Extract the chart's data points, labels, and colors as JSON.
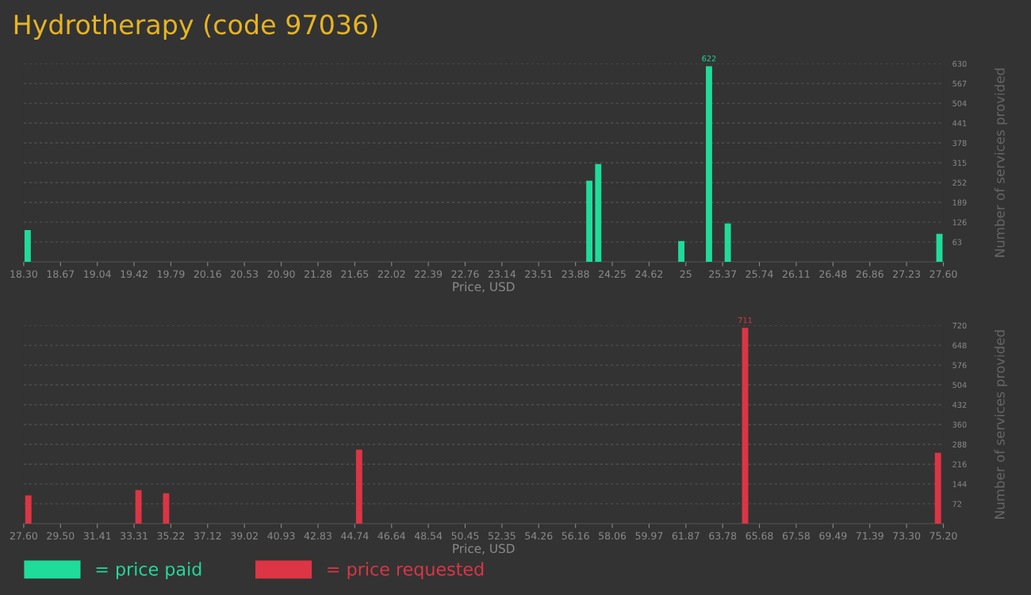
{
  "chart_data": [
    {
      "type": "bar",
      "title": "Hydrotherapy (code 97036)",
      "xlabel": "Price, USD",
      "ylabel": "Number of services provided",
      "x": [
        18.34,
        24.02,
        24.11,
        24.95,
        25.23,
        25.42,
        27.56
      ],
      "series": [
        {
          "name": "= price paid",
          "color": "#1fdc9a",
          "values": [
            101,
            258,
            311,
            66,
            622,
            122,
            89
          ],
          "value_labels": [
            null,
            null,
            null,
            null,
            "622",
            null,
            null
          ]
        }
      ],
      "xlim": [
        18.3,
        27.6
      ],
      "ylim": [
        0,
        630
      ],
      "xticks": [
        {
          "value": 18.3,
          "label": "18.30"
        },
        {
          "value": 18.672,
          "label": "18.67"
        },
        {
          "value": 19.044,
          "label": "19.04"
        },
        {
          "value": 19.416,
          "label": "19.42"
        },
        {
          "value": 19.788,
          "label": "19.79"
        },
        {
          "value": 20.16,
          "label": "20.16"
        },
        {
          "value": 20.532,
          "label": "20.53"
        },
        {
          "value": 20.904,
          "label": "20.90"
        },
        {
          "value": 21.276,
          "label": "21.28"
        },
        {
          "value": 21.648,
          "label": "21.65"
        },
        {
          "value": 22.02,
          "label": "22.02"
        },
        {
          "value": 22.392,
          "label": "22.39"
        },
        {
          "value": 22.764,
          "label": "22.76"
        },
        {
          "value": 23.136,
          "label": "23.14"
        },
        {
          "value": 23.508,
          "label": "23.51"
        },
        {
          "value": 23.88,
          "label": "23.88"
        },
        {
          "value": 24.252,
          "label": "24.25"
        },
        {
          "value": 24.624,
          "label": "24.62"
        },
        {
          "value": 24.996,
          "label": "25"
        },
        {
          "value": 25.368,
          "label": "25.37"
        },
        {
          "value": 25.74,
          "label": "25.74"
        },
        {
          "value": 26.112,
          "label": "26.11"
        },
        {
          "value": 26.484,
          "label": "26.48"
        },
        {
          "value": 26.856,
          "label": "26.86"
        },
        {
          "value": 27.228,
          "label": "27.23"
        },
        {
          "value": 27.6,
          "label": "27.60"
        }
      ],
      "yticks": [
        63,
        126,
        189,
        252,
        315,
        378,
        441,
        504,
        567,
        630
      ],
      "grid": "y",
      "legend": "bottom left"
    },
    {
      "type": "bar",
      "xlabel": "Price, USD",
      "ylabel": "Number of services provided",
      "x": [
        27.84,
        33.54,
        34.97,
        44.96,
        64.94,
        74.92
      ],
      "series": [
        {
          "name": "= price requested",
          "color": "#dc3545",
          "values": [
            102,
            122,
            110,
            269,
            711,
            257
          ],
          "value_labels": [
            null,
            null,
            null,
            null,
            "711",
            null
          ]
        }
      ],
      "xlim": [
        27.6,
        75.2
      ],
      "ylim": [
        0,
        720
      ],
      "xticks": [
        {
          "value": 27.6,
          "label": "27.60"
        },
        {
          "value": 29.504,
          "label": "29.50"
        },
        {
          "value": 31.408,
          "label": "31.41"
        },
        {
          "value": 33.312,
          "label": "33.31"
        },
        {
          "value": 35.216,
          "label": "35.22"
        },
        {
          "value": 37.12,
          "label": "37.12"
        },
        {
          "value": 39.024,
          "label": "39.02"
        },
        {
          "value": 40.928,
          "label": "40.93"
        },
        {
          "value": 42.832,
          "label": "42.83"
        },
        {
          "value": 44.736,
          "label": "44.74"
        },
        {
          "value": 46.64,
          "label": "46.64"
        },
        {
          "value": 48.544,
          "label": "48.54"
        },
        {
          "value": 50.448,
          "label": "50.45"
        },
        {
          "value": 52.352,
          "label": "52.35"
        },
        {
          "value": 54.256,
          "label": "54.26"
        },
        {
          "value": 56.16,
          "label": "56.16"
        },
        {
          "value": 58.064,
          "label": "58.06"
        },
        {
          "value": 59.968,
          "label": "59.97"
        },
        {
          "value": 61.872,
          "label": "61.87"
        },
        {
          "value": 63.776,
          "label": "63.78"
        },
        {
          "value": 65.68,
          "label": "65.68"
        },
        {
          "value": 67.584,
          "label": "67.58"
        },
        {
          "value": 69.488,
          "label": "69.49"
        },
        {
          "value": 71.392,
          "label": "71.39"
        },
        {
          "value": 73.296,
          "label": "73.30"
        },
        {
          "value": 75.2,
          "label": "75.20"
        }
      ],
      "yticks": [
        72,
        144,
        216,
        288,
        360,
        432,
        504,
        576,
        648,
        720
      ],
      "grid": "y",
      "legend": "bottom left"
    }
  ]
}
